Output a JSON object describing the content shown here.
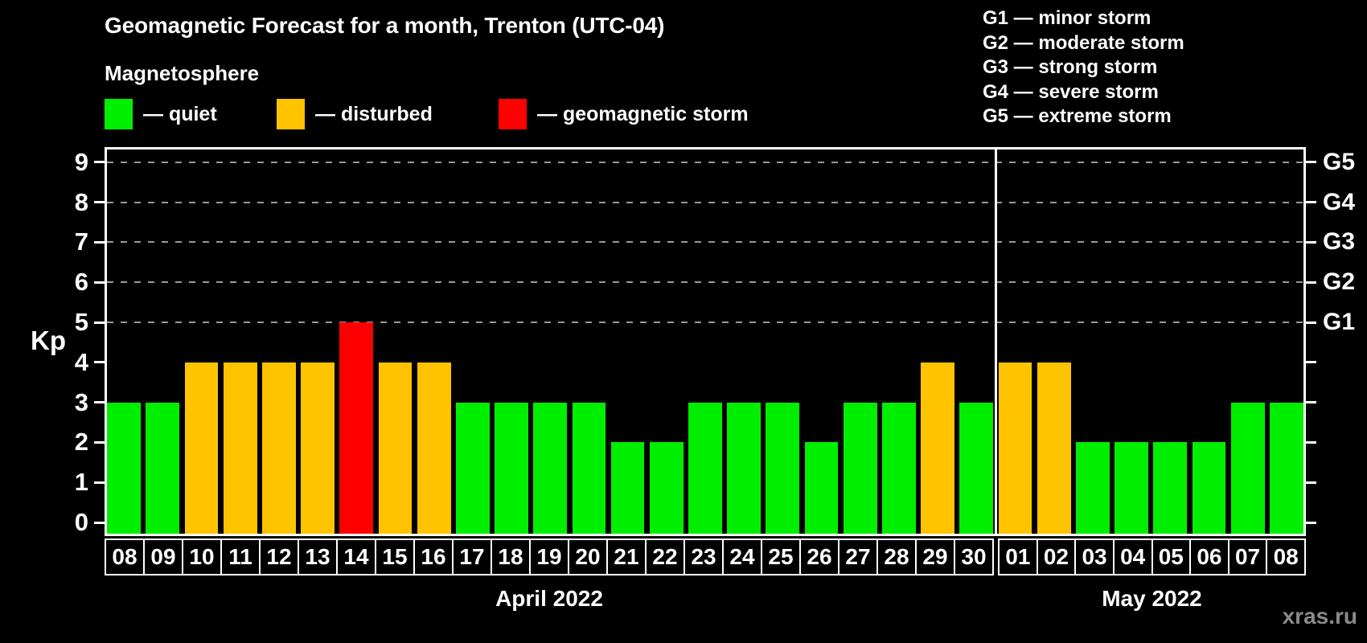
{
  "title": "Geomagnetic Forecast for a month, Trenton (UTC-04)",
  "subtitle": "Magnetosphere",
  "legend": {
    "items": [
      {
        "key": "quiet",
        "label": "— quiet",
        "color": "#00ef00"
      },
      {
        "key": "disturbed",
        "label": "— disturbed",
        "color": "#ffc300"
      },
      {
        "key": "storm",
        "label": "— geomagnetic storm",
        "color": "#ff0000"
      }
    ]
  },
  "storm_scale": {
    "lines": [
      "G1 — minor storm",
      "G2 — moderate storm",
      "G3 — strong storm",
      "G4 — severe storm",
      "G5 — extreme storm"
    ]
  },
  "colors": {
    "background": "#000000",
    "axis": "#ffffff",
    "gridline": "#999999",
    "quiet": "#00ef00",
    "disturbed": "#ffc300",
    "storm": "#ff0000",
    "watermark_text": "#8a8a8a"
  },
  "watermark": "xras.ru",
  "chart_data": {
    "type": "bar",
    "ylabel": "Kp",
    "ylim": [
      0,
      9
    ],
    "yticks": [
      0,
      1,
      2,
      3,
      4,
      5,
      6,
      7,
      8,
      9
    ],
    "gridlines_at": [
      5,
      6,
      7,
      8,
      9
    ],
    "grid": "dashed horizontal at storm levels only",
    "legend_position": "top-left",
    "right_axis": [
      {
        "kp": 5,
        "label": "G1"
      },
      {
        "kp": 6,
        "label": "G2"
      },
      {
        "kp": 7,
        "label": "G3"
      },
      {
        "kp": 8,
        "label": "G4"
      },
      {
        "kp": 9,
        "label": "G5"
      }
    ],
    "months": [
      {
        "label": "April 2022",
        "days": [
          {
            "day": "08",
            "kp": 3,
            "status": "quiet"
          },
          {
            "day": "09",
            "kp": 3,
            "status": "quiet"
          },
          {
            "day": "10",
            "kp": 4,
            "status": "disturbed"
          },
          {
            "day": "11",
            "kp": 4,
            "status": "disturbed"
          },
          {
            "day": "12",
            "kp": 4,
            "status": "disturbed"
          },
          {
            "day": "13",
            "kp": 4,
            "status": "disturbed"
          },
          {
            "day": "14",
            "kp": 5,
            "status": "storm"
          },
          {
            "day": "15",
            "kp": 4,
            "status": "disturbed"
          },
          {
            "day": "16",
            "kp": 4,
            "status": "disturbed"
          },
          {
            "day": "17",
            "kp": 3,
            "status": "quiet"
          },
          {
            "day": "18",
            "kp": 3,
            "status": "quiet"
          },
          {
            "day": "19",
            "kp": 3,
            "status": "quiet"
          },
          {
            "day": "20",
            "kp": 3,
            "status": "quiet"
          },
          {
            "day": "21",
            "kp": 2,
            "status": "quiet"
          },
          {
            "day": "22",
            "kp": 2,
            "status": "quiet"
          },
          {
            "day": "23",
            "kp": 3,
            "status": "quiet"
          },
          {
            "day": "24",
            "kp": 3,
            "status": "quiet"
          },
          {
            "day": "25",
            "kp": 3,
            "status": "quiet"
          },
          {
            "day": "26",
            "kp": 2,
            "status": "quiet"
          },
          {
            "day": "27",
            "kp": 3,
            "status": "quiet"
          },
          {
            "day": "28",
            "kp": 3,
            "status": "quiet"
          },
          {
            "day": "29",
            "kp": 4,
            "status": "disturbed"
          },
          {
            "day": "30",
            "kp": 3,
            "status": "quiet"
          }
        ]
      },
      {
        "label": "May 2022",
        "days": [
          {
            "day": "01",
            "kp": 4,
            "status": "disturbed"
          },
          {
            "day": "02",
            "kp": 4,
            "status": "disturbed"
          },
          {
            "day": "03",
            "kp": 2,
            "status": "quiet"
          },
          {
            "day": "04",
            "kp": 2,
            "status": "quiet"
          },
          {
            "day": "05",
            "kp": 2,
            "status": "quiet"
          },
          {
            "day": "06",
            "kp": 2,
            "status": "quiet"
          },
          {
            "day": "07",
            "kp": 3,
            "status": "quiet"
          },
          {
            "day": "08",
            "kp": 3,
            "status": "quiet"
          }
        ]
      }
    ]
  }
}
